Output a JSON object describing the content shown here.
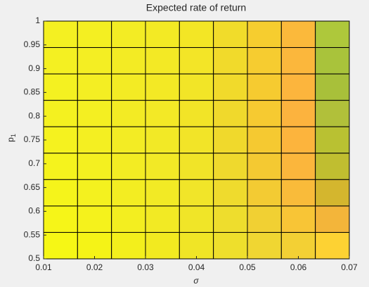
{
  "chart_data": {
    "type": "heatmap",
    "title": "Expected rate of return",
    "x_label": "σ",
    "y_label": "p",
    "y_label_subscript": "1",
    "xlim": [
      0.01,
      0.07
    ],
    "xticks": [
      0.01,
      0.02,
      0.03,
      0.04,
      0.05,
      0.06,
      0.07
    ],
    "ylim": [
      0.5,
      1
    ],
    "yticks": [
      0.5,
      0.55,
      0.6,
      0.65,
      0.7,
      0.75,
      0.8,
      0.85,
      0.9,
      0.95,
      1
    ],
    "cell_colors": [
      [
        "#f4f022",
        "#f4ef22",
        "#f3ec24",
        "#f3ea24",
        "#f3e625",
        "#f1dc2a",
        "#f6cd2f",
        "#fbb93b",
        "#aec83b"
      ],
      [
        "#f4f022",
        "#f4ee23",
        "#f3eb24",
        "#f3e925",
        "#f3e527",
        "#f1da2b",
        "#f6cc30",
        "#fbb73c",
        "#a9c33b"
      ],
      [
        "#f4f121",
        "#f4ee23",
        "#f3eb24",
        "#f3e925",
        "#f2e527",
        "#f1da2b",
        "#f6cb30",
        "#fcb53d",
        "#a8c03a"
      ],
      [
        "#f4f120",
        "#f4ef22",
        "#f3eb24",
        "#f3e926",
        "#f2e427",
        "#f0d92c",
        "#f6ca31",
        "#fcb33e",
        "#b1c03a"
      ],
      [
        "#f5f21f",
        "#f4ef22",
        "#f3ec24",
        "#f2e926",
        "#f2e428",
        "#f0d92c",
        "#f5c931",
        "#fcb43d",
        "#b9c132"
      ],
      [
        "#f5f31d",
        "#f4f020",
        "#f3ec23",
        "#f2e926",
        "#f1e428",
        "#efd92d",
        "#f4c932",
        "#fbb63c",
        "#c0be30"
      ],
      [
        "#f5f41b",
        "#f4f11f",
        "#f3ed22",
        "#f2ea25",
        "#f1e529",
        "#efdb2d",
        "#f3cb33",
        "#f9bb3a",
        "#d4b62e"
      ],
      [
        "#f6f518",
        "#f5f21c",
        "#f3ee20",
        "#f2ea24",
        "#f0e528",
        "#eedd2d",
        "#f1d033",
        "#f8c536",
        "#f3b53a"
      ],
      [
        "#f6f715",
        "#f5f317",
        "#f3ef1c",
        "#f2ea20",
        "#f0e526",
        "#eedf2c",
        "#f0d632",
        "#f3d034",
        "#fdd233"
      ]
    ]
  }
}
